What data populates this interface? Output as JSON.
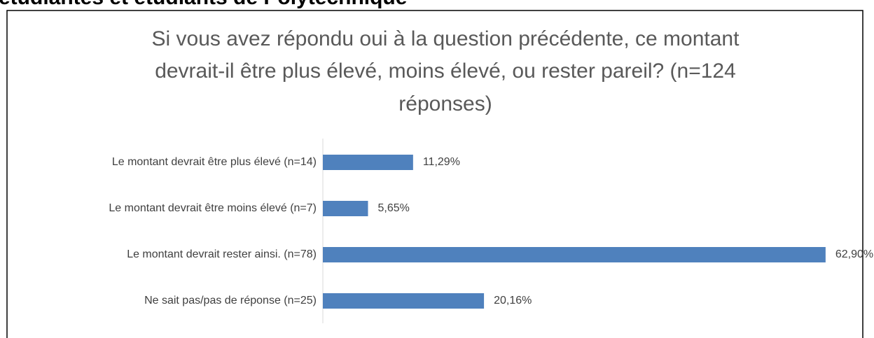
{
  "page_heading": "étudiantes et étudiants de Polytechnique",
  "chart_data": {
    "type": "bar",
    "orientation": "horizontal",
    "title": [
      "Si vous avez répondu oui à la question précédente, ce montant",
      "devrait-il être plus élevé, moins élevé, ou rester pareil? (n=124",
      "réponses)"
    ],
    "categories": [
      "Le montant devrait être plus élevé (n=14)",
      "Le montant devrait être moins élevé (n=7)",
      "Le montant devrait rester ainsi. (n=78)",
      "Ne sait pas/pas de réponse (n=25)"
    ],
    "values": [
      11.29,
      5.65,
      62.9,
      20.16
    ],
    "value_labels": [
      "11,29%",
      "5,65%",
      "62,90%",
      "20,16%"
    ],
    "color": "#4f81bd",
    "xlim": [
      0,
      63
    ]
  }
}
